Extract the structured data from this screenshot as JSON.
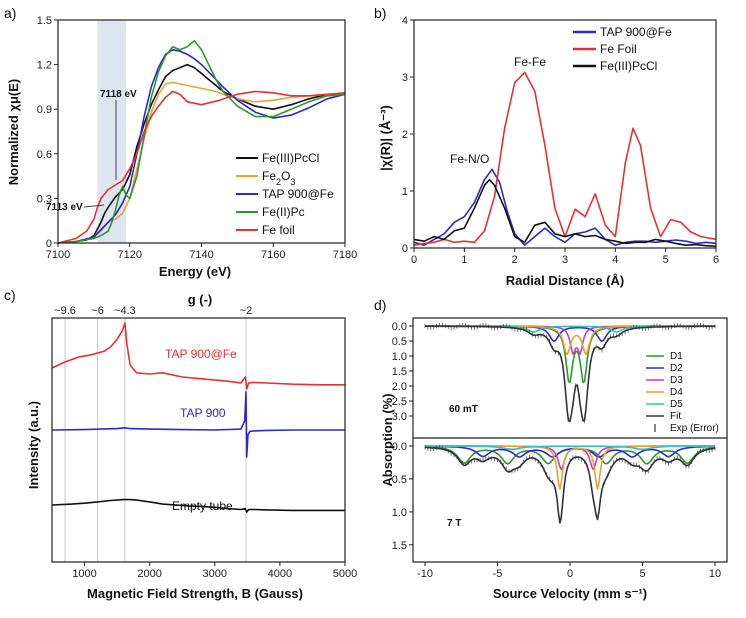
{
  "chart_data": [
    {
      "panel": "a)",
      "type": "line",
      "xlabel": "Energy (eV)",
      "ylabel": "Normalized χμ(E)",
      "xlim": [
        7100,
        7180
      ],
      "ylim": [
        0,
        1.5
      ],
      "xticks": [
        7100,
        7120,
        7140,
        7160,
        7180
      ],
      "yticks": [
        "0",
        "0.3",
        "0.6",
        "0.9",
        "1.2",
        "1.5"
      ],
      "legend_position": "lower-right",
      "shaded_region": [
        7111,
        7119
      ],
      "annotations": [
        {
          "text": "7118 eV",
          "x": 7118,
          "y": 0.72
        },
        {
          "text": "7113 eV",
          "x": 7113,
          "y": 0.3
        }
      ],
      "series": [
        {
          "name": "Fe(III)PcCl",
          "color": "#111111",
          "x": [
            7100,
            7105,
            7108,
            7110,
            7112,
            7113,
            7114,
            7116,
            7118,
            7120,
            7122,
            7124,
            7126,
            7128,
            7130,
            7132,
            7134,
            7136,
            7138,
            7140,
            7142,
            7144,
            7146,
            7150,
            7155,
            7160,
            7165,
            7170,
            7175,
            7180
          ],
          "y": [
            0,
            0.01,
            0.02,
            0.05,
            0.14,
            0.2,
            0.24,
            0.31,
            0.36,
            0.46,
            0.65,
            0.8,
            0.93,
            1.03,
            1.12,
            1.16,
            1.18,
            1.2,
            1.18,
            1.14,
            1.1,
            1.06,
            1.02,
            0.97,
            0.92,
            0.9,
            0.93,
            0.97,
            1.0,
            1.0
          ]
        },
        {
          "name": "Fe2O3",
          "name_main": "Fe",
          "name_sub": "2",
          "name_tail": "O",
          "name_sub2": "3",
          "color": "#f0a030",
          "x": [
            7100,
            7105,
            7110,
            7112,
            7114,
            7116,
            7118,
            7120,
            7122,
            7124,
            7126,
            7128,
            7130,
            7132,
            7134,
            7136,
            7138,
            7140,
            7142,
            7144,
            7146,
            7150,
            7155,
            7160,
            7165,
            7170,
            7175,
            7180
          ],
          "y": [
            0,
            0.01,
            0.04,
            0.08,
            0.14,
            0.16,
            0.2,
            0.3,
            0.5,
            0.7,
            0.88,
            1.0,
            1.07,
            1.08,
            1.07,
            1.06,
            1.05,
            1.04,
            1.03,
            1.02,
            1.0,
            0.97,
            0.95,
            0.96,
            0.98,
            0.99,
            1.0,
            1.0
          ]
        },
        {
          "name": "TAP 900@Fe",
          "color": "#2a2ad0",
          "x": [
            7100,
            7105,
            7110,
            7112,
            7114,
            7116,
            7118,
            7120,
            7122,
            7124,
            7126,
            7128,
            7130,
            7132,
            7134,
            7136,
            7138,
            7140,
            7142,
            7144,
            7146,
            7150,
            7155,
            7160,
            7165,
            7170,
            7175,
            7180
          ],
          "y": [
            0,
            0.01,
            0.04,
            0.09,
            0.14,
            0.19,
            0.27,
            0.38,
            0.6,
            0.85,
            1.05,
            1.18,
            1.27,
            1.3,
            1.29,
            1.27,
            1.24,
            1.2,
            1.15,
            1.1,
            1.05,
            0.96,
            0.88,
            0.84,
            0.86,
            0.91,
            0.97,
            1.0
          ]
        },
        {
          "name": "Fe(II)Pc",
          "color": "#2a9a2a",
          "x": [
            7100,
            7105,
            7110,
            7112,
            7114,
            7115,
            7116,
            7117,
            7118,
            7119,
            7120,
            7122,
            7124,
            7126,
            7128,
            7130,
            7132,
            7134,
            7136,
            7138,
            7140,
            7142,
            7144,
            7146,
            7150,
            7155,
            7160,
            7165,
            7170,
            7175,
            7180
          ],
          "y": [
            0,
            0.01,
            0.03,
            0.05,
            0.08,
            0.14,
            0.22,
            0.32,
            0.38,
            0.32,
            0.3,
            0.45,
            0.72,
            0.98,
            1.15,
            1.26,
            1.32,
            1.3,
            1.32,
            1.36,
            1.3,
            1.2,
            1.1,
            1.02,
            0.92,
            0.85,
            0.85,
            0.9,
            0.95,
            0.99,
            1.0
          ]
        },
        {
          "name": "Fe foil",
          "color": "#e83030",
          "x": [
            7100,
            7105,
            7108,
            7110,
            7111,
            7112,
            7114,
            7116,
            7118,
            7120,
            7122,
            7124,
            7126,
            7128,
            7130,
            7132,
            7134,
            7136,
            7140,
            7145,
            7150,
            7155,
            7160,
            7165,
            7170,
            7175,
            7180
          ],
          "y": [
            0,
            0.03,
            0.08,
            0.16,
            0.24,
            0.3,
            0.36,
            0.39,
            0.42,
            0.5,
            0.6,
            0.75,
            0.85,
            0.92,
            0.98,
            1.02,
            1.0,
            0.95,
            0.93,
            0.96,
            1.0,
            1.02,
            1.01,
            0.99,
            0.99,
            1.0,
            1.01
          ]
        }
      ]
    },
    {
      "panel": "b)",
      "type": "line",
      "xlabel": "Radial Distance (Å)",
      "ylabel": "|χ(R)| (Å⁻³)",
      "xlim": [
        0,
        6
      ],
      "ylim": [
        0,
        4
      ],
      "xticks": [
        0,
        1,
        2,
        3,
        4,
        5,
        6
      ],
      "yticks": [
        0,
        1,
        2,
        3,
        4
      ],
      "legend_position": "top-right",
      "annotations": [
        {
          "text": "Fe-Fe",
          "x": 2.2,
          "y": 3.25
        },
        {
          "text": "Fe-N/O",
          "x": 1.2,
          "y": 1.6
        }
      ],
      "series": [
        {
          "name": "TAP 900@Fe",
          "color": "#2a2ad0",
          "x": [
            0,
            0.2,
            0.4,
            0.6,
            0.8,
            1.0,
            1.2,
            1.4,
            1.55,
            1.7,
            1.85,
            2.0,
            2.2,
            2.4,
            2.6,
            2.8,
            3.0,
            3.2,
            3.4,
            3.6,
            3.8,
            4.0,
            4.2,
            4.4,
            4.6,
            4.8,
            5.0,
            5.2,
            5.4,
            5.6,
            5.8,
            6.0
          ],
          "y": [
            0.1,
            0.05,
            0.15,
            0.25,
            0.45,
            0.55,
            0.8,
            1.2,
            1.38,
            1.15,
            0.65,
            0.25,
            0.05,
            0.2,
            0.35,
            0.2,
            0.1,
            0.25,
            0.28,
            0.35,
            0.15,
            0.05,
            0.1,
            0.12,
            0.12,
            0.1,
            0.12,
            0.14,
            0.12,
            0.08,
            0.1,
            0.08
          ]
        },
        {
          "name": "Fe Foil",
          "color": "#e83030",
          "x": [
            0,
            0.2,
            0.4,
            0.6,
            0.8,
            1.0,
            1.2,
            1.4,
            1.6,
            1.8,
            2.0,
            2.2,
            2.4,
            2.6,
            2.8,
            3.0,
            3.2,
            3.4,
            3.6,
            3.8,
            4.0,
            4.2,
            4.35,
            4.5,
            4.7,
            4.9,
            5.1,
            5.3,
            5.5,
            5.7,
            6.0
          ],
          "y": [
            0.05,
            0.08,
            0.1,
            0.15,
            0.1,
            0.12,
            0.1,
            0.3,
            0.9,
            2.1,
            2.9,
            3.08,
            2.75,
            1.8,
            0.7,
            0.2,
            0.68,
            0.55,
            0.95,
            0.4,
            0.2,
            1.5,
            2.1,
            1.8,
            0.7,
            0.2,
            0.5,
            0.45,
            0.28,
            0.2,
            0.15
          ]
        },
        {
          "name": "Fe(III)PcCl",
          "color": "#111111",
          "x": [
            0,
            0.2,
            0.4,
            0.6,
            0.8,
            1.0,
            1.2,
            1.4,
            1.5,
            1.6,
            1.8,
            2.0,
            2.2,
            2.4,
            2.6,
            2.8,
            3.0,
            3.2,
            3.4,
            3.6,
            3.8,
            4.0,
            4.2,
            4.4,
            4.6,
            4.8,
            5.0,
            5.2,
            5.4,
            5.6,
            5.8,
            6.0
          ],
          "y": [
            0.15,
            0.12,
            0.2,
            0.15,
            0.3,
            0.35,
            0.7,
            1.1,
            1.2,
            1.1,
            0.7,
            0.2,
            0.1,
            0.4,
            0.45,
            0.25,
            0.2,
            0.25,
            0.2,
            0.22,
            0.15,
            0.12,
            0.08,
            0.1,
            0.1,
            0.15,
            0.12,
            0.08,
            0.05,
            0.06,
            0.04,
            0.03
          ]
        }
      ]
    },
    {
      "panel": "c)",
      "type": "line",
      "xlabel": "Magnetic Field Strength, B (Gauss)",
      "ylabel": "Intensity (a.u.)",
      "top_axis_label": "g (-)",
      "xlim": [
        500,
        5000
      ],
      "xticks": [
        1000,
        2000,
        3000,
        4000,
        5000
      ],
      "g_marks": [
        {
          "label": "~9.6",
          "x": 700
        },
        {
          "label": "~6",
          "x": 1200
        },
        {
          "label": "~4.3",
          "x": 1620
        },
        {
          "label": "~2",
          "x": 3480
        }
      ],
      "series": [
        {
          "name": "TAP 900@Fe",
          "color": "#e83030",
          "x": [
            500,
            700,
            900,
            1100,
            1200,
            1300,
            1400,
            1500,
            1580,
            1620,
            1650,
            1700,
            1800,
            2000,
            2200,
            2500,
            2800,
            3000,
            3200,
            3400,
            3470,
            3490,
            3520,
            3600,
            3800,
            4200,
            4600,
            5000
          ],
          "y": [
            0.2,
            0.3,
            0.38,
            0.42,
            0.45,
            0.48,
            0.55,
            0.68,
            0.82,
            0.95,
            0.6,
            0.25,
            0.12,
            0.1,
            0.12,
            0.05,
            0.02,
            0.0,
            -0.02,
            -0.05,
            0.05,
            -0.15,
            -0.05,
            -0.04,
            -0.05,
            -0.07,
            -0.08,
            -0.08
          ]
        },
        {
          "name": "TAP 900",
          "color": "#2a2ad0",
          "x": [
            500,
            1000,
            1500,
            1620,
            1700,
            2000,
            2500,
            3000,
            3400,
            3460,
            3480,
            3490,
            3510,
            3540,
            3600,
            3800,
            4200,
            4600,
            5000
          ],
          "y": [
            0.0,
            0.01,
            0.03,
            0.05,
            0.03,
            0.02,
            0.01,
            0.0,
            0.02,
            0.2,
            0.85,
            -0.6,
            -0.1,
            -0.03,
            -0.02,
            -0.01,
            0.0,
            0.0,
            0.0
          ]
        },
        {
          "name": "Empty tube",
          "color": "#111111",
          "x": [
            500,
            800,
            1000,
            1200,
            1400,
            1600,
            1700,
            1800,
            2000,
            2200,
            2400,
            2600,
            2800,
            3000,
            3200,
            3400,
            3470,
            3490,
            3520,
            3600,
            3800,
            4200,
            4600,
            5000
          ],
          "y": [
            0.0,
            0.02,
            0.04,
            0.07,
            0.1,
            0.12,
            0.12,
            0.11,
            0.07,
            0.02,
            0.0,
            -0.02,
            -0.03,
            -0.05,
            -0.08,
            -0.1,
            -0.08,
            -0.16,
            -0.1,
            -0.1,
            -0.11,
            -0.12,
            -0.12,
            -0.12
          ]
        }
      ]
    },
    {
      "panel": "d)",
      "type": "line",
      "xlabel": "Source Velocity (mm s⁻¹)",
      "ylabel": "Absorption (%)",
      "xlim": [
        -10,
        10
      ],
      "xticks": [
        -10,
        -5,
        0,
        5,
        10
      ],
      "legend_position": "right",
      "legend": [
        "D1",
        "D2",
        "D3",
        "D4",
        "D5",
        "Fit",
        "Exp (Error)"
      ],
      "legend_colors": [
        "#2a9a2a",
        "#2a2ad0",
        "#c040c0",
        "#f0a030",
        "#30c0c0",
        "#333333",
        "#333333"
      ],
      "subplots": [
        {
          "label": "60 mT",
          "ylim": [
            0,
            3.6
          ],
          "yticks": [
            "0.0",
            "0.5",
            "1.0",
            "1.5",
            "2.0",
            "2.5",
            "3.0"
          ],
          "components": [
            {
              "name": "D1",
              "color": "#2a9a2a",
              "type": "doublet",
              "centers": [
                -0.05,
                0.95
              ],
              "depth": 1.8,
              "width": 0.55
            },
            {
              "name": "D2",
              "color": "#2a2ad0",
              "type": "doublet",
              "centers": [
                -1.1,
                2.2
              ],
              "depth": 0.5,
              "width": 0.8
            },
            {
              "name": "D3",
              "color": "#c040c0",
              "type": "doublet",
              "centers": [
                0.2,
                0.7
              ],
              "depth": 0.8,
              "width": 0.45
            },
            {
              "name": "D4",
              "color": "#f0a030",
              "type": "doublet",
              "centers": [
                -0.2,
                1.1
              ],
              "depth": 0.9,
              "width": 0.6
            },
            {
              "name": "D5",
              "color": "#30c0c0",
              "type": "doublet",
              "centers": [
                -2.5,
                3.2
              ],
              "depth": 0.2,
              "width": 1.0
            }
          ]
        },
        {
          "label": "7 T",
          "ylim": [
            0,
            1.7
          ],
          "yticks": [
            "0.0",
            "0.5",
            "1.0",
            "1.5"
          ],
          "components": [
            {
              "name": "D1",
              "color": "#2a9a2a",
              "type": "sextet",
              "centers": [
                -7.3,
                -4.3,
                -1.5,
                2.5,
                5.3,
                8.1
              ],
              "depth": 0.25,
              "width": 1.1
            },
            {
              "name": "D2",
              "color": "#2a2ad0",
              "type": "sextet",
              "centers": [
                -6.0,
                -3.5,
                -1.2,
                2.0,
                4.3,
                6.8
              ],
              "depth": 0.15,
              "width": 1.1
            },
            {
              "name": "D3",
              "color": "#c040c0",
              "type": "doublet",
              "centers": [
                -0.6,
                1.6
              ],
              "depth": 0.35,
              "width": 0.55
            },
            {
              "name": "D4",
              "color": "#f0a030",
              "type": "doublet",
              "centers": [
                -0.7,
                1.9
              ],
              "depth": 0.65,
              "width": 0.45
            },
            {
              "name": "D5",
              "color": "#30c0c0",
              "type": "doublet",
              "centers": [
                -4.0,
                5.0
              ],
              "depth": 0.05,
              "width": 1.5
            }
          ]
        }
      ]
    }
  ]
}
